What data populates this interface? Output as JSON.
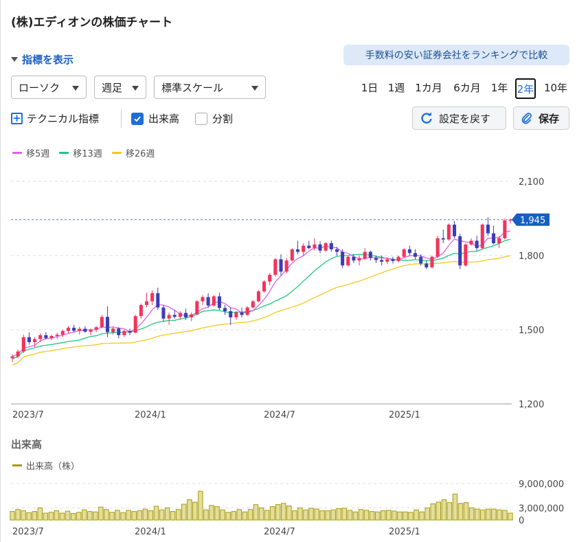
{
  "title": "(株)エディオンの株価チャート",
  "indicator_toggle": "指標を表示",
  "ranking_link": "手数料の安い証券会社をランキングで比較",
  "controls": {
    "chart_type": "ローソク",
    "period_type": "週足",
    "scale": "標準スケール"
  },
  "ranges": [
    "1日",
    "1週",
    "1カ月",
    "6カ月",
    "1年",
    "2年",
    "10年"
  ],
  "active_range": "2年",
  "options": {
    "technical": "テクニカル指標",
    "volume": "出来高",
    "volume_checked": true,
    "split": "分割",
    "split_checked": false
  },
  "buttons": {
    "reset": "設定を戻す",
    "save": "保存"
  },
  "colors": {
    "up": "#f2345c",
    "down": "#3c3db4",
    "ma5": "#e060e8",
    "ma13": "#1fc77a",
    "ma26": "#f3c81c",
    "volume": "#a59a12",
    "accent": "#1d6fd8"
  },
  "chart_data": {
    "type": "candlestick",
    "series": [
      {
        "name": "移5週"
      },
      {
        "name": "移13週"
      },
      {
        "name": "移26週"
      }
    ],
    "y_ticks": [
      "2,100",
      "1,800",
      "1,500",
      "1,200"
    ],
    "ylim": [
      1200,
      2100
    ],
    "x_labels": [
      "2023/7",
      "2024/1",
      "2024/7",
      "2025/1"
    ],
    "current_price": "1,945",
    "current_value": 1945,
    "candles": [
      [
        1385,
        1400,
        1370,
        1392
      ],
      [
        1392,
        1420,
        1385,
        1412
      ],
      [
        1412,
        1480,
        1405,
        1470
      ],
      [
        1470,
        1490,
        1440,
        1450
      ],
      [
        1450,
        1470,
        1430,
        1462
      ],
      [
        1462,
        1485,
        1450,
        1478
      ],
      [
        1478,
        1490,
        1460,
        1466
      ],
      [
        1466,
        1480,
        1458,
        1475
      ],
      [
        1475,
        1488,
        1462,
        1480
      ],
      [
        1480,
        1500,
        1470,
        1495
      ],
      [
        1495,
        1515,
        1485,
        1508
      ],
      [
        1508,
        1520,
        1490,
        1496
      ],
      [
        1496,
        1512,
        1480,
        1504
      ],
      [
        1504,
        1514,
        1488,
        1492
      ],
      [
        1492,
        1505,
        1478,
        1500
      ],
      [
        1500,
        1515,
        1490,
        1510
      ],
      [
        1510,
        1560,
        1505,
        1552
      ],
      [
        1552,
        1595,
        1470,
        1490
      ],
      [
        1490,
        1512,
        1480,
        1505
      ],
      [
        1505,
        1510,
        1465,
        1478
      ],
      [
        1478,
        1500,
        1470,
        1495
      ],
      [
        1495,
        1505,
        1478,
        1488
      ],
      [
        1488,
        1560,
        1485,
        1555
      ],
      [
        1555,
        1605,
        1545,
        1600
      ],
      [
        1600,
        1650,
        1590,
        1615
      ],
      [
        1615,
        1660,
        1600,
        1648
      ],
      [
        1648,
        1670,
        1580,
        1590
      ],
      [
        1590,
        1600,
        1535,
        1545
      ],
      [
        1545,
        1570,
        1520,
        1560
      ],
      [
        1560,
        1580,
        1545,
        1552
      ],
      [
        1552,
        1575,
        1540,
        1568
      ],
      [
        1568,
        1585,
        1540,
        1550
      ],
      [
        1550,
        1570,
        1535,
        1562
      ],
      [
        1562,
        1620,
        1558,
        1615
      ],
      [
        1615,
        1640,
        1600,
        1632
      ],
      [
        1632,
        1648,
        1590,
        1598
      ],
      [
        1598,
        1640,
        1592,
        1635
      ],
      [
        1635,
        1650,
        1580,
        1588
      ],
      [
        1588,
        1600,
        1560,
        1575
      ],
      [
        1575,
        1590,
        1520,
        1550
      ],
      [
        1550,
        1575,
        1540,
        1570
      ],
      [
        1570,
        1590,
        1550,
        1560
      ],
      [
        1560,
        1595,
        1555,
        1590
      ],
      [
        1590,
        1620,
        1585,
        1615
      ],
      [
        1615,
        1660,
        1610,
        1655
      ],
      [
        1655,
        1700,
        1650,
        1695
      ],
      [
        1695,
        1730,
        1680,
        1722
      ],
      [
        1722,
        1790,
        1715,
        1785
      ],
      [
        1785,
        1805,
        1720,
        1735
      ],
      [
        1735,
        1790,
        1728,
        1780
      ],
      [
        1780,
        1830,
        1775,
        1825
      ],
      [
        1825,
        1860,
        1805,
        1815
      ],
      [
        1815,
        1850,
        1800,
        1840
      ],
      [
        1840,
        1860,
        1825,
        1830
      ],
      [
        1830,
        1870,
        1820,
        1845
      ],
      [
        1845,
        1858,
        1810,
        1820
      ],
      [
        1820,
        1855,
        1815,
        1850
      ],
      [
        1850,
        1860,
        1815,
        1825
      ],
      [
        1825,
        1835,
        1800,
        1815
      ],
      [
        1815,
        1825,
        1750,
        1760
      ],
      [
        1760,
        1800,
        1755,
        1795
      ],
      [
        1795,
        1805,
        1770,
        1780
      ],
      [
        1780,
        1800,
        1760,
        1788
      ],
      [
        1788,
        1830,
        1782,
        1815
      ],
      [
        1815,
        1820,
        1780,
        1790
      ],
      [
        1790,
        1800,
        1770,
        1782
      ],
      [
        1782,
        1800,
        1760,
        1775
      ],
      [
        1775,
        1792,
        1765,
        1785
      ],
      [
        1785,
        1795,
        1768,
        1778
      ],
      [
        1778,
        1800,
        1772,
        1795
      ],
      [
        1795,
        1830,
        1790,
        1825
      ],
      [
        1825,
        1840,
        1800,
        1810
      ],
      [
        1810,
        1825,
        1785,
        1795
      ],
      [
        1795,
        1805,
        1760,
        1768
      ],
      [
        1768,
        1780,
        1745,
        1752
      ],
      [
        1752,
        1800,
        1748,
        1795
      ],
      [
        1795,
        1880,
        1790,
        1870
      ],
      [
        1870,
        1905,
        1850,
        1865
      ],
      [
        1865,
        1930,
        1860,
        1925
      ],
      [
        1925,
        1940,
        1870,
        1878
      ],
      [
        1878,
        1888,
        1745,
        1760
      ],
      [
        1760,
        1850,
        1755,
        1845
      ],
      [
        1845,
        1870,
        1840,
        1860
      ],
      [
        1860,
        1880,
        1820,
        1830
      ],
      [
        1830,
        1930,
        1825,
        1925
      ],
      [
        1925,
        1955,
        1880,
        1890
      ],
      [
        1890,
        1920,
        1845,
        1850
      ],
      [
        1850,
        1880,
        1830,
        1870
      ],
      [
        1870,
        1950,
        1865,
        1942
      ],
      [
        1942,
        1950,
        1930,
        1945
      ]
    ],
    "volume": {
      "title": "出来高",
      "series_name": "出来高（株）",
      "y_ticks": [
        "9,000,000",
        "3,000,000",
        "0"
      ],
      "ylim": [
        0,
        10000000
      ],
      "values": [
        2100000,
        2600000,
        2300000,
        1800000,
        2100000,
        3000000,
        1700000,
        1900000,
        2300000,
        1700000,
        2200000,
        1600000,
        1900000,
        2500000,
        2100000,
        2000000,
        3200000,
        2600000,
        1900000,
        2400000,
        1800000,
        2400000,
        2100000,
        2300000,
        2700000,
        2300000,
        3400000,
        2500000,
        3000000,
        2100000,
        2600000,
        3900000,
        5000000,
        4400000,
        7100000,
        2500000,
        3600000,
        3300000,
        2500000,
        1900000,
        2100000,
        2600000,
        2000000,
        2600000,
        3800000,
        3000000,
        2400000,
        3300000,
        3800000,
        4100000,
        3500000,
        2300000,
        3000000,
        2500000,
        2900000,
        2700000,
        2300000,
        2300000,
        2500000,
        2800000,
        2900000,
        2400000,
        2000000,
        2600000,
        2400000,
        2100000,
        2000000,
        2300000,
        2400000,
        2200000,
        2000000,
        2000000,
        1900000,
        2500000,
        2000000,
        3000000,
        4000000,
        4400000,
        5000000,
        4300000,
        6400000,
        4100000,
        4300000,
        3000000,
        2700000,
        2500000,
        2700000,
        2700000,
        2500000,
        2400000,
        1700000
      ]
    }
  }
}
